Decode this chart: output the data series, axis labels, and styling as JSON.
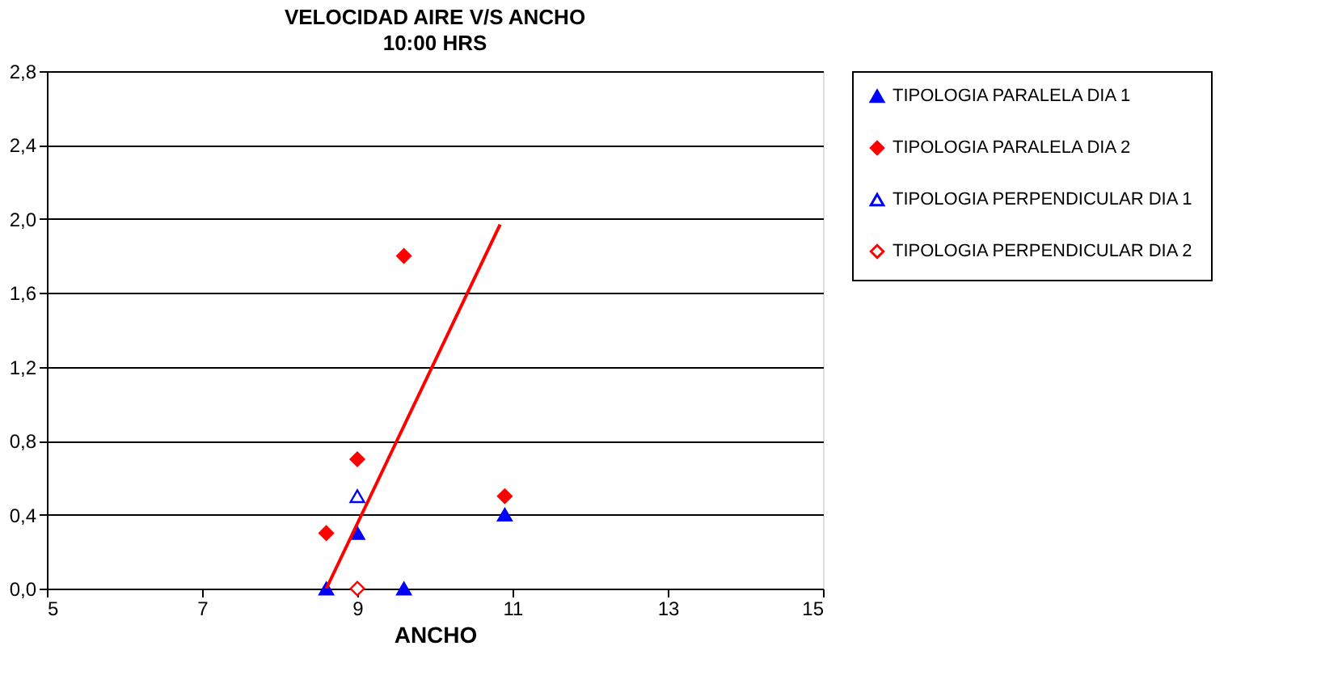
{
  "chart_data": {
    "type": "scatter",
    "title": "VELOCIDAD AIRE V/S ANCHO",
    "subtitle": "10:00 HRS",
    "xlabel": "ANCHO",
    "xlim": [
      5,
      15
    ],
    "xticks": [
      5,
      7,
      9,
      11,
      13,
      15
    ],
    "ylim": [
      0,
      2.8
    ],
    "yticks": [
      {
        "value": 0,
        "label": "0,0"
      },
      {
        "value": 0.4,
        "label": "0,4"
      },
      {
        "value": 0.8,
        "label": "0,8"
      },
      {
        "value": 1.2,
        "label": "1,2"
      },
      {
        "value": 1.6,
        "label": "1,6"
      },
      {
        "value": 2.0,
        "label": "2,0"
      },
      {
        "value": 2.4,
        "label": "2,4"
      },
      {
        "value": 2.8,
        "label": "2,8"
      }
    ],
    "grid": "y",
    "legend": "right",
    "series": [
      {
        "name": "TIPOLOGIA PARALELA DIA 1",
        "color": "#0000ff",
        "marker": "triangle",
        "x": [
          8.6,
          9,
          9.6,
          10.9
        ],
        "values": [
          0,
          0.3,
          0,
          0.4
        ]
      },
      {
        "name": "TIPOLOGIA PARALELA DIA 2",
        "color": "#ff0000",
        "marker": "diamond",
        "x": [
          8.6,
          9,
          9.6,
          10.9
        ],
        "values": [
          0.3,
          0.7,
          1.8,
          0.5
        ]
      },
      {
        "name": "TIPOLOGIA PERPENDICULAR DIA 1",
        "color": "#0000ff",
        "marker": "triangle",
        "x": [
          9
        ],
        "values": [
          0.5
        ]
      },
      {
        "name": "TIPOLOGIA PERPENDICULAR DIA 2",
        "color": "#ff0000",
        "marker": "diamond",
        "x": [
          9
        ],
        "values": [
          0
        ]
      },
      {
        "type": "line",
        "color": "#ff0000",
        "x": [
          8.6,
          10.84
        ],
        "values": [
          0,
          1.97
        ]
      }
    ]
  }
}
